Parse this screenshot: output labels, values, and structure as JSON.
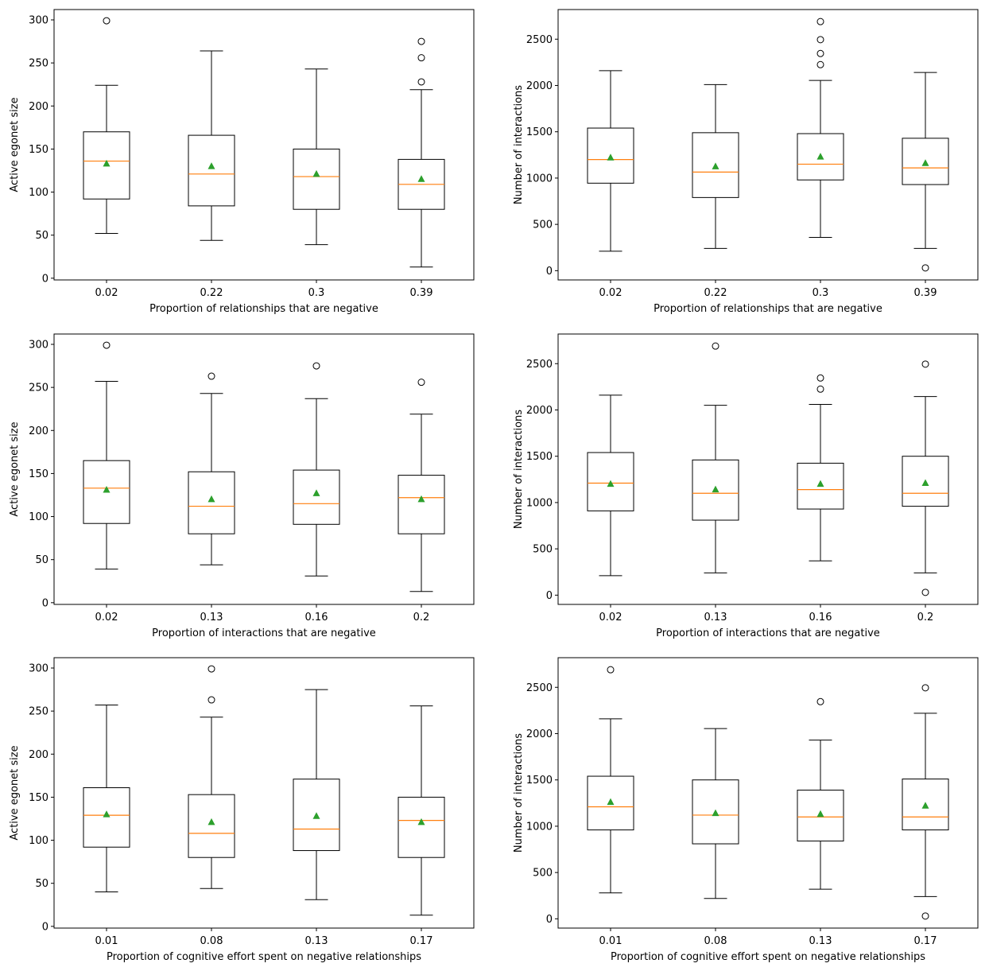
{
  "colors": {
    "box": "#000000",
    "median": "#ff7f0e",
    "mean": "#2ca02c",
    "background": "#ffffff"
  },
  "chart_data": [
    {
      "type": "box",
      "xlabel": "Proportion of relationships that are negative",
      "ylabel": "Active egonet size",
      "ylim": [
        -2,
        312
      ],
      "yticks": [
        0,
        50,
        100,
        150,
        200,
        250,
        300
      ],
      "categories": [
        "0.02",
        "0.22",
        "0.3",
        "0.39"
      ],
      "boxes": [
        {
          "whisker_low": 52,
          "q1": 92,
          "median": 136,
          "q3": 170,
          "whisker_high": 224,
          "mean": 133,
          "outliers": [
            299
          ]
        },
        {
          "whisker_low": 44,
          "q1": 84,
          "median": 121,
          "q3": 166,
          "whisker_high": 264,
          "mean": 130,
          "outliers": []
        },
        {
          "whisker_low": 39,
          "q1": 80,
          "median": 118,
          "q3": 150,
          "whisker_high": 243,
          "mean": 121,
          "outliers": []
        },
        {
          "whisker_low": 13,
          "q1": 80,
          "median": 109,
          "q3": 138,
          "whisker_high": 219,
          "mean": 115,
          "outliers": [
            228,
            256,
            275
          ]
        }
      ]
    },
    {
      "type": "box",
      "xlabel": "Proportion of relationships that are negative",
      "ylabel": "Number of interactions",
      "ylim": [
        -100,
        2820
      ],
      "yticks": [
        0,
        500,
        1000,
        1500,
        2000,
        2500
      ],
      "categories": [
        "0.02",
        "0.22",
        "0.3",
        "0.39"
      ],
      "boxes": [
        {
          "whisker_low": 210,
          "q1": 945,
          "median": 1200,
          "q3": 1540,
          "whisker_high": 2160,
          "mean": 1220,
          "outliers": []
        },
        {
          "whisker_low": 240,
          "q1": 790,
          "median": 1065,
          "q3": 1490,
          "whisker_high": 2010,
          "mean": 1125,
          "outliers": []
        },
        {
          "whisker_low": 360,
          "q1": 980,
          "median": 1150,
          "q3": 1480,
          "whisker_high": 2055,
          "mean": 1230,
          "outliers": [
            2225,
            2345,
            2495,
            2690
          ]
        },
        {
          "whisker_low": 240,
          "q1": 930,
          "median": 1110,
          "q3": 1430,
          "whisker_high": 2140,
          "mean": 1160,
          "outliers": [
            30
          ]
        }
      ]
    },
    {
      "type": "box",
      "xlabel": "Proportion of interactions that are negative",
      "ylabel": "Active egonet size",
      "ylim": [
        -2,
        312
      ],
      "yticks": [
        0,
        50,
        100,
        150,
        200,
        250,
        300
      ],
      "categories": [
        "0.02",
        "0.13",
        "0.16",
        "0.2"
      ],
      "boxes": [
        {
          "whisker_low": 39,
          "q1": 92,
          "median": 133,
          "q3": 165,
          "whisker_high": 257,
          "mean": 131,
          "outliers": [
            299
          ]
        },
        {
          "whisker_low": 44,
          "q1": 80,
          "median": 112,
          "q3": 152,
          "whisker_high": 243,
          "mean": 120,
          "outliers": [
            263
          ]
        },
        {
          "whisker_low": 31,
          "q1": 91,
          "median": 115,
          "q3": 154,
          "whisker_high": 237,
          "mean": 127,
          "outliers": [
            275
          ]
        },
        {
          "whisker_low": 13,
          "q1": 80,
          "median": 122,
          "q3": 148,
          "whisker_high": 219,
          "mean": 120,
          "outliers": [
            256
          ]
        }
      ]
    },
    {
      "type": "box",
      "xlabel": "Proportion of interactions that are negative",
      "ylabel": "Number of interactions",
      "ylim": [
        -100,
        2820
      ],
      "yticks": [
        0,
        500,
        1000,
        1500,
        2000,
        2500
      ],
      "categories": [
        "0.02",
        "0.13",
        "0.16",
        "0.2"
      ],
      "boxes": [
        {
          "whisker_low": 210,
          "q1": 910,
          "median": 1210,
          "q3": 1540,
          "whisker_high": 2160,
          "mean": 1200,
          "outliers": []
        },
        {
          "whisker_low": 240,
          "q1": 810,
          "median": 1100,
          "q3": 1460,
          "whisker_high": 2050,
          "mean": 1140,
          "outliers": [
            2690
          ]
        },
        {
          "whisker_low": 370,
          "q1": 930,
          "median": 1140,
          "q3": 1425,
          "whisker_high": 2060,
          "mean": 1200,
          "outliers": [
            2225,
            2345
          ]
        },
        {
          "whisker_low": 240,
          "q1": 960,
          "median": 1100,
          "q3": 1500,
          "whisker_high": 2145,
          "mean": 1210,
          "outliers": [
            30,
            2495
          ]
        }
      ]
    },
    {
      "type": "box",
      "xlabel": "Proportion of cognitive effort spent on negative relationships",
      "ylabel": "Active egonet size",
      "ylim": [
        -2,
        312
      ],
      "yticks": [
        0,
        50,
        100,
        150,
        200,
        250,
        300
      ],
      "categories": [
        "0.01",
        "0.08",
        "0.13",
        "0.17"
      ],
      "boxes": [
        {
          "whisker_low": 40,
          "q1": 92,
          "median": 129,
          "q3": 161,
          "whisker_high": 257,
          "mean": 130,
          "outliers": []
        },
        {
          "whisker_low": 44,
          "q1": 80,
          "median": 108,
          "q3": 153,
          "whisker_high": 243,
          "mean": 121,
          "outliers": [
            263,
            299
          ]
        },
        {
          "whisker_low": 31,
          "q1": 88,
          "median": 113,
          "q3": 171,
          "whisker_high": 275,
          "mean": 128,
          "outliers": []
        },
        {
          "whisker_low": 13,
          "q1": 80,
          "median": 123,
          "q3": 150,
          "whisker_high": 256,
          "mean": 121,
          "outliers": []
        }
      ]
    },
    {
      "type": "box",
      "xlabel": "Proportion of cognitive effort spent on negative relationships",
      "ylabel": "Number of interactions",
      "ylim": [
        -100,
        2820
      ],
      "yticks": [
        0,
        500,
        1000,
        1500,
        2000,
        2500
      ],
      "categories": [
        "0.01",
        "0.08",
        "0.13",
        "0.17"
      ],
      "boxes": [
        {
          "whisker_low": 280,
          "q1": 960,
          "median": 1210,
          "q3": 1540,
          "whisker_high": 2160,
          "mean": 1260,
          "outliers": [
            2690
          ]
        },
        {
          "whisker_low": 220,
          "q1": 810,
          "median": 1120,
          "q3": 1500,
          "whisker_high": 2055,
          "mean": 1140,
          "outliers": []
        },
        {
          "whisker_low": 320,
          "q1": 840,
          "median": 1100,
          "q3": 1390,
          "whisker_high": 1930,
          "mean": 1130,
          "outliers": [
            2345
          ]
        },
        {
          "whisker_low": 240,
          "q1": 960,
          "median": 1100,
          "q3": 1510,
          "whisker_high": 2220,
          "mean": 1220,
          "outliers": [
            30,
            2495
          ]
        }
      ]
    }
  ]
}
